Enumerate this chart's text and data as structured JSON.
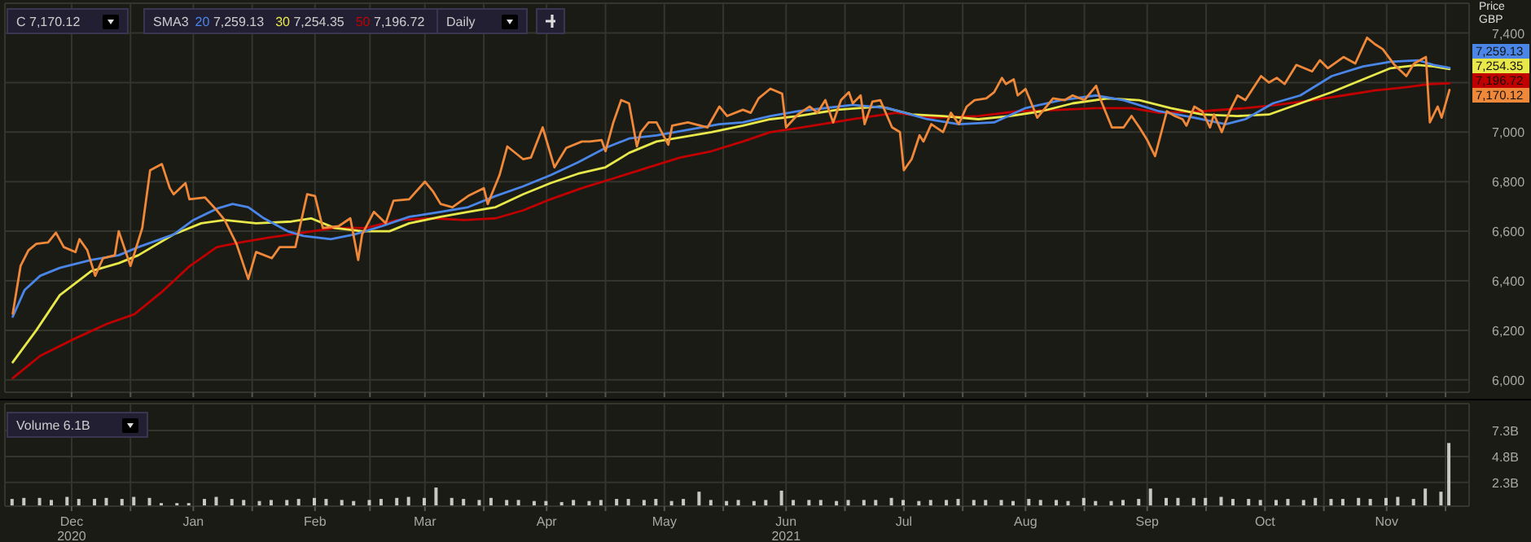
{
  "chart_data": [
    {
      "type": "line",
      "ylabel": "Price GBP",
      "legend_title": "SMA3",
      "legend": "top left",
      "grid": true,
      "tick_labels": "y",
      "annotations": [
        "C 7,170.12",
        "Daily",
        "7,259.13",
        "7,254.35",
        "7,196.72",
        {
          "text": "7,196.72",
          "x": "2021-11-17",
          "y": 7196.72
        },
        {
          "text": "7,254.35",
          "x": "2021-11-17",
          "y": 7254.35
        },
        {
          "text": "7,259.13",
          "x": "2021-11-17",
          "y": 7259.13
        },
        {
          "text": "7,170.12",
          "x": "2021-11-17",
          "y": 7170.12
        }
      ],
      "xlim": [
        "2020-11-14",
        "2021-11-22"
      ],
      "xticks": [
        {
          "value": "2020-12-01",
          "label": null
        },
        {
          "value": "2020-12-16",
          "label": null
        },
        {
          "value": "2021-01-01",
          "label": null
        },
        {
          "value": "2021-01-16",
          "label": null
        },
        {
          "value": "2021-02-01",
          "label": null
        },
        {
          "value": "2021-02-15",
          "label": null
        },
        {
          "value": "2021-03-01",
          "label": null
        },
        {
          "value": "2021-03-16",
          "label": null
        },
        {
          "value": "2021-04-01",
          "label": null
        },
        {
          "value": "2021-04-16",
          "label": null
        },
        {
          "value": "2021-05-01",
          "label": null
        },
        {
          "value": "2021-05-16",
          "label": null
        },
        {
          "value": "2021-06-01",
          "label": null
        },
        {
          "value": "2021-06-16",
          "label": null
        },
        {
          "value": "2021-07-01",
          "label": null
        },
        {
          "value": "2021-07-16",
          "label": null
        },
        {
          "value": "2021-08-01",
          "label": null
        },
        {
          "value": "2021-08-16",
          "label": null
        },
        {
          "value": "2021-09-01",
          "label": null
        },
        {
          "value": "2021-09-16",
          "label": null
        },
        {
          "value": "2021-10-01",
          "label": null
        },
        {
          "value": "2021-10-16",
          "label": null
        },
        {
          "value": "2021-11-01",
          "label": null
        },
        {
          "value": "2021-11-16",
          "label": null
        }
      ],
      "ylim": [
        5950,
        7520
      ],
      "yticks": [
        {
          "value": 6000,
          "label": "6,000"
        },
        {
          "value": 6200,
          "label": "6,200"
        },
        {
          "value": 6400,
          "label": "6,400"
        },
        {
          "value": 6600,
          "label": "6,600"
        },
        {
          "value": 6800,
          "label": "6,800"
        },
        {
          "value": 7000,
          "label": "7,000"
        },
        {
          "value": 7200,
          "label": null
        },
        {
          "value": 7400,
          "label": "7,400"
        }
      ],
      "series": [
        {
          "type": "line",
          "color": "#c00000",
          "name": "50",
          "x": [
            "2020-11-16",
            "2020-11-23",
            "2020-12-02",
            "2020-12-10",
            "2020-12-17",
            "2020-12-24",
            "2020-12-31",
            "2021-01-07",
            "2021-01-13",
            "2021-01-20",
            "2021-01-29",
            "2021-02-06",
            "2021-02-14",
            "2021-02-22",
            "2021-03-03",
            "2021-03-11",
            "2021-03-19",
            "2021-03-26",
            "2021-04-02",
            "2021-04-10",
            "2021-04-18",
            "2021-04-27",
            "2021-05-05",
            "2021-05-13",
            "2021-05-21",
            "2021-05-28",
            "2021-06-05",
            "2021-06-18",
            "2021-06-29",
            "2021-07-08",
            "2021-07-20",
            "2021-07-30",
            "2021-08-10",
            "2021-08-19",
            "2021-08-28",
            "2021-09-04",
            "2021-09-15",
            "2021-09-26",
            "2021-10-04",
            "2021-10-13",
            "2021-10-21",
            "2021-10-29",
            "2021-11-06",
            "2021-11-12",
            "2021-11-17"
          ],
          "values": [
            6007,
            6097,
            6168,
            6226,
            6265,
            6355,
            6458,
            6536,
            6555,
            6574,
            6594,
            6613,
            6613,
            6645,
            6652,
            6645,
            6652,
            6684,
            6729,
            6774,
            6813,
            6858,
            6897,
            6923,
            6962,
            7000,
            7019,
            7052,
            7078,
            7058,
            7065,
            7084,
            7090,
            7097,
            7097,
            7078,
            7084,
            7097,
            7110,
            7129,
            7148,
            7168,
            7181,
            7194,
            7196.72
          ]
        },
        {
          "type": "line",
          "color": "#e8e84a",
          "name": "30",
          "x": [
            "2020-11-16",
            "2020-11-22",
            "2020-11-28",
            "2020-12-06",
            "2020-12-13",
            "2020-12-18",
            "2020-12-27",
            "2021-01-03",
            "2021-01-09",
            "2021-01-17",
            "2021-01-26",
            "2021-01-31",
            "2021-02-06",
            "2021-02-13",
            "2021-02-20",
            "2021-02-25",
            "2021-03-05",
            "2021-03-12",
            "2021-03-19",
            "2021-03-26",
            "2021-04-02",
            "2021-04-09",
            "2021-04-16",
            "2021-04-22",
            "2021-04-29",
            "2021-05-06",
            "2021-05-13",
            "2021-05-21",
            "2021-05-28",
            "2021-06-04",
            "2021-06-14",
            "2021-06-25",
            "2021-07-03",
            "2021-07-11",
            "2021-07-20",
            "2021-07-28",
            "2021-08-05",
            "2021-08-13",
            "2021-08-22",
            "2021-08-30",
            "2021-09-07",
            "2021-09-15",
            "2021-09-24",
            "2021-10-02",
            "2021-10-10",
            "2021-10-18",
            "2021-10-26",
            "2021-11-02",
            "2021-11-09",
            "2021-11-13",
            "2021-11-17"
          ],
          "values": [
            6071,
            6200,
            6342,
            6439,
            6471,
            6503,
            6587,
            6632,
            6645,
            6632,
            6639,
            6652,
            6613,
            6600,
            6600,
            6632,
            6658,
            6678,
            6697,
            6749,
            6794,
            6832,
            6858,
            6916,
            6962,
            6981,
            7000,
            7026,
            7052,
            7065,
            7090,
            7103,
            7071,
            7065,
            7052,
            7065,
            7084,
            7116,
            7136,
            7129,
            7097,
            7071,
            7065,
            7071,
            7116,
            7161,
            7213,
            7258,
            7271,
            7265,
            7254.35
          ]
        },
        {
          "type": "line",
          "color": "#4a86e8",
          "name": "20",
          "x": [
            "2020-11-16",
            "2020-11-19",
            "2020-11-23",
            "2020-11-28",
            "2020-12-06",
            "2020-12-13",
            "2020-12-18",
            "2020-12-27",
            "2021-01-01",
            "2021-01-07",
            "2021-01-11",
            "2021-01-15",
            "2021-01-19",
            "2021-01-25",
            "2021-01-29",
            "2021-02-05",
            "2021-02-11",
            "2021-02-18",
            "2021-02-25",
            "2021-03-05",
            "2021-03-12",
            "2021-03-19",
            "2021-03-26",
            "2021-04-02",
            "2021-04-09",
            "2021-04-16",
            "2021-04-22",
            "2021-04-29",
            "2021-05-06",
            "2021-05-15",
            "2021-05-21",
            "2021-05-28",
            "2021-06-04",
            "2021-06-18",
            "2021-06-27",
            "2021-07-07",
            "2021-07-15",
            "2021-07-24",
            "2021-08-01",
            "2021-08-10",
            "2021-08-19",
            "2021-08-26",
            "2021-09-04",
            "2021-09-13",
            "2021-09-21",
            "2021-09-26",
            "2021-10-03",
            "2021-10-10",
            "2021-10-18",
            "2021-10-26",
            "2021-11-02",
            "2021-11-09",
            "2021-11-13",
            "2021-11-17"
          ],
          "values": [
            6255,
            6362,
            6420,
            6452,
            6484,
            6503,
            6536,
            6587,
            6645,
            6691,
            6710,
            6697,
            6652,
            6600,
            6581,
            6568,
            6587,
            6620,
            6658,
            6678,
            6697,
            6742,
            6781,
            6826,
            6878,
            6936,
            6974,
            6987,
            7006,
            7032,
            7039,
            7065,
            7084,
            7110,
            7097,
            7052,
            7032,
            7039,
            7097,
            7129,
            7148,
            7129,
            7084,
            7058,
            7032,
            7052,
            7116,
            7148,
            7226,
            7265,
            7284,
            7290,
            7271,
            7259.13
          ]
        },
        {
          "type": "line",
          "color": "#f0883a",
          "x": [
            "2020-11-16",
            "2020-11-18",
            "2020-11-20",
            "2020-11-22",
            "2020-11-25",
            "2020-11-27",
            "2020-11-29",
            "2020-12-02",
            "2020-12-03",
            "2020-12-05",
            "2020-12-07",
            "2020-12-09",
            "2020-12-12",
            "2020-12-13",
            "2020-12-16",
            "2020-12-19",
            "2020-12-21",
            "2020-12-24",
            "2020-12-26",
            "2020-12-27",
            "2020-12-30",
            "2020-12-31",
            "2021-01-04",
            "2021-01-07",
            "2021-01-09",
            "2021-01-12",
            "2021-01-15",
            "2021-01-17",
            "2021-01-21",
            "2021-01-23",
            "2021-01-27",
            "2021-01-30",
            "2021-02-01",
            "2021-02-03",
            "2021-02-07",
            "2021-02-10",
            "2021-02-12",
            "2021-02-13",
            "2021-02-16",
            "2021-02-19",
            "2021-02-21",
            "2021-02-25",
            "2021-03-01",
            "2021-03-03",
            "2021-03-05",
            "2021-03-08",
            "2021-03-12",
            "2021-03-16",
            "2021-03-17",
            "2021-03-20",
            "2021-03-22",
            "2021-03-26",
            "2021-03-28",
            "2021-03-31",
            "2021-04-03",
            "2021-04-06",
            "2021-04-10",
            "2021-04-12",
            "2021-04-15",
            "2021-04-16",
            "2021-04-18",
            "2021-04-20",
            "2021-04-22",
            "2021-04-24",
            "2021-04-25",
            "2021-04-27",
            "2021-04-29",
            "2021-05-02",
            "2021-05-03",
            "2021-05-07",
            "2021-05-12",
            "2021-05-15",
            "2021-05-17",
            "2021-05-21",
            "2021-05-23",
            "2021-05-25",
            "2021-05-28",
            "2021-05-31",
            "2021-06-01",
            "2021-06-04",
            "2021-06-07",
            "2021-06-09",
            "2021-06-11",
            "2021-06-13",
            "2021-06-15",
            "2021-06-17",
            "2021-06-18",
            "2021-06-20",
            "2021-06-21",
            "2021-06-23",
            "2021-06-25",
            "2021-06-28",
            "2021-06-30",
            "2021-07-01",
            "2021-07-03",
            "2021-07-05",
            "2021-07-06",
            "2021-07-08",
            "2021-07-11",
            "2021-07-13",
            "2021-07-15",
            "2021-07-17",
            "2021-07-19",
            "2021-07-22",
            "2021-07-24",
            "2021-07-26",
            "2021-07-27",
            "2021-07-29",
            "2021-07-30",
            "2021-08-01",
            "2021-08-04",
            "2021-08-06",
            "2021-08-08",
            "2021-08-11",
            "2021-08-13",
            "2021-08-16",
            "2021-08-19",
            "2021-08-20",
            "2021-08-23",
            "2021-08-26",
            "2021-08-28",
            "2021-08-30",
            "2021-09-01",
            "2021-09-03",
            "2021-09-06",
            "2021-09-08",
            "2021-09-10",
            "2021-09-11",
            "2021-09-13",
            "2021-09-15",
            "2021-09-17",
            "2021-09-18",
            "2021-09-20",
            "2021-09-22",
            "2021-09-24",
            "2021-09-26",
            "2021-09-30",
            "2021-10-02",
            "2021-10-04",
            "2021-10-06",
            "2021-10-09",
            "2021-10-13",
            "2021-10-15",
            "2021-10-17",
            "2021-10-21",
            "2021-10-24",
            "2021-10-27",
            "2021-10-29",
            "2021-10-31",
            "2021-11-03",
            "2021-11-06",
            "2021-11-08",
            "2021-11-11",
            "2021-11-12",
            "2021-11-14",
            "2021-11-15",
            "2021-11-17"
          ],
          "values": [
            6267,
            6460,
            6523,
            6549,
            6555,
            6594,
            6536,
            6516,
            6568,
            6523,
            6420,
            6491,
            6503,
            6600,
            6460,
            6613,
            6846,
            6871,
            6774,
            6749,
            6794,
            6729,
            6736,
            6684,
            6645,
            6549,
            6407,
            6516,
            6491,
            6536,
            6536,
            6749,
            6742,
            6613,
            6620,
            6652,
            6484,
            6587,
            6678,
            6632,
            6723,
            6729,
            6800,
            6762,
            6710,
            6697,
            6742,
            6774,
            6710,
            6826,
            6942,
            6891,
            6897,
            7019,
            6858,
            6936,
            6962,
            6962,
            6968,
            6923,
            7039,
            7129,
            7116,
            6942,
            7000,
            7039,
            7039,
            6949,
            7026,
            7039,
            7019,
            7103,
            7065,
            7090,
            7078,
            7136,
            7175,
            7155,
            7019,
            7071,
            7103,
            7078,
            7129,
            7039,
            7129,
            7161,
            7116,
            7148,
            7032,
            7123,
            7129,
            7019,
            7000,
            6846,
            6891,
            6987,
            6962,
            7032,
            7000,
            7078,
            7032,
            7103,
            7129,
            7136,
            7161,
            7219,
            7194,
            7213,
            7148,
            7174,
            7058,
            7097,
            7136,
            7129,
            7148,
            7129,
            7187,
            7136,
            7019,
            7019,
            7065,
            7019,
            6968,
            6903,
            7084,
            7065,
            7052,
            7026,
            7103,
            7084,
            7019,
            7071,
            7000,
            7084,
            7148,
            7129,
            7226,
            7200,
            7219,
            7194,
            7271,
            7245,
            7290,
            7258,
            7303,
            7277,
            7381,
            7355,
            7335,
            7271,
            7226,
            7277,
            7303,
            7039,
            7103,
            7058,
            7170.12
          ]
        }
      ]
    },
    {
      "type": "bar",
      "title": "Volume 6.1B",
      "color": "#c8c8c0",
      "grid": true,
      "xlim": [
        "2020-11-14",
        "2021-11-22"
      ],
      "xticks": [
        {
          "value": "2020-12-01",
          "label": "Dec 2020"
        },
        {
          "value": "2020-12-16",
          "label": null
        },
        {
          "value": "2021-01-01",
          "label": "Jan"
        },
        {
          "value": "2021-01-16",
          "label": null
        },
        {
          "value": "2021-02-01",
          "label": "Feb"
        },
        {
          "value": "2021-02-15",
          "label": null
        },
        {
          "value": "2021-03-01",
          "label": "Mar"
        },
        {
          "value": "2021-03-16",
          "label": null
        },
        {
          "value": "2021-04-01",
          "label": "Apr"
        },
        {
          "value": "2021-04-16",
          "label": null
        },
        {
          "value": "2021-05-01",
          "label": "May"
        },
        {
          "value": "2021-05-16",
          "label": null
        },
        {
          "value": "2021-06-01",
          "label": "Jun 2021"
        },
        {
          "value": "2021-06-16",
          "label": null
        },
        {
          "value": "2021-07-01",
          "label": "Jul"
        },
        {
          "value": "2021-07-16",
          "label": null
        },
        {
          "value": "2021-08-01",
          "label": "Aug"
        },
        {
          "value": "2021-08-16",
          "label": null
        },
        {
          "value": "2021-09-01",
          "label": "Sep"
        },
        {
          "value": "2021-09-16",
          "label": null
        },
        {
          "value": "2021-10-01",
          "label": "Oct"
        },
        {
          "value": "2021-10-16",
          "label": null
        },
        {
          "value": "2021-11-01",
          "label": "Nov"
        },
        {
          "value": "2021-11-16",
          "label": null
        }
      ],
      "ylim": [
        0,
        9.9
      ],
      "yticks": [
        {
          "value": 2.3,
          "label": "2.3B"
        },
        {
          "value": 4.8,
          "label": "4.8B"
        },
        {
          "value": 7.3,
          "label": "7.3B"
        }
      ],
      "x": [
        "2020-11-16",
        "2020-11-19",
        "2020-11-23",
        "2020-11-26",
        "2020-11-30",
        "2020-12-03",
        "2020-12-07",
        "2020-12-10",
        "2020-12-14",
        "2020-12-17",
        "2020-12-21",
        "2020-12-24",
        "2020-12-28",
        "2020-12-31",
        "2021-01-04",
        "2021-01-07",
        "2021-01-11",
        "2021-01-14",
        "2021-01-18",
        "2021-01-21",
        "2021-01-25",
        "2021-01-28",
        "2021-02-01",
        "2021-02-04",
        "2021-02-08",
        "2021-02-11",
        "2021-02-15",
        "2021-02-18",
        "2021-02-22",
        "2021-02-25",
        "2021-03-01",
        "2021-03-04",
        "2021-03-08",
        "2021-03-11",
        "2021-03-15",
        "2021-03-18",
        "2021-03-22",
        "2021-03-25",
        "2021-03-29",
        "2021-04-01",
        "2021-04-05",
        "2021-04-08",
        "2021-04-12",
        "2021-04-15",
        "2021-04-19",
        "2021-04-22",
        "2021-04-26",
        "2021-04-29",
        "2021-05-03",
        "2021-05-06",
        "2021-05-10",
        "2021-05-13",
        "2021-05-17",
        "2021-05-20",
        "2021-05-24",
        "2021-05-27",
        "2021-05-31",
        "2021-06-03",
        "2021-06-07",
        "2021-06-10",
        "2021-06-14",
        "2021-06-17",
        "2021-06-21",
        "2021-06-24",
        "2021-06-28",
        "2021-07-01",
        "2021-07-05",
        "2021-07-08",
        "2021-07-12",
        "2021-07-15",
        "2021-07-19",
        "2021-07-22",
        "2021-07-26",
        "2021-07-29",
        "2021-08-02",
        "2021-08-05",
        "2021-08-09",
        "2021-08-12",
        "2021-08-16",
        "2021-08-19",
        "2021-08-23",
        "2021-08-26",
        "2021-08-30",
        "2021-09-02",
        "2021-09-06",
        "2021-09-09",
        "2021-09-13",
        "2021-09-16",
        "2021-09-20",
        "2021-09-23",
        "2021-09-27",
        "2021-09-30",
        "2021-10-04",
        "2021-10-07",
        "2021-10-11",
        "2021-10-14",
        "2021-10-18",
        "2021-10-21",
        "2021-10-25",
        "2021-10-28",
        "2021-11-01",
        "2021-11-04",
        "2021-11-08",
        "2021-11-11",
        "2021-11-15",
        "2021-11-17"
      ],
      "values": [
        0.7,
        0.8,
        0.8,
        0.6,
        0.9,
        0.7,
        0.7,
        0.8,
        0.7,
        0.9,
        0.8,
        0.3,
        0.3,
        0.3,
        0.7,
        0.9,
        0.7,
        0.6,
        0.5,
        0.6,
        0.6,
        0.7,
        0.8,
        0.7,
        0.6,
        0.5,
        0.6,
        0.7,
        0.8,
        0.9,
        0.8,
        1.8,
        0.8,
        0.7,
        0.6,
        0.8,
        0.6,
        0.6,
        0.5,
        0.5,
        0.4,
        0.6,
        0.5,
        0.6,
        0.7,
        0.7,
        0.6,
        0.7,
        0.5,
        0.7,
        1.4,
        0.6,
        0.5,
        0.6,
        0.5,
        0.6,
        1.5,
        0.6,
        0.6,
        0.6,
        0.5,
        0.6,
        0.6,
        0.6,
        0.8,
        0.6,
        0.5,
        0.6,
        0.6,
        0.7,
        0.6,
        0.6,
        0.6,
        0.5,
        0.7,
        0.6,
        0.6,
        0.5,
        0.8,
        0.5,
        0.5,
        0.6,
        0.7,
        1.7,
        0.8,
        0.8,
        0.8,
        0.8,
        0.9,
        0.7,
        0.7,
        0.6,
        0.6,
        0.7,
        0.6,
        0.8,
        0.7,
        0.7,
        0.8,
        0.7,
        0.8,
        0.9,
        0.7,
        1.7,
        1.4,
        6.1
      ]
    }
  ]
}
